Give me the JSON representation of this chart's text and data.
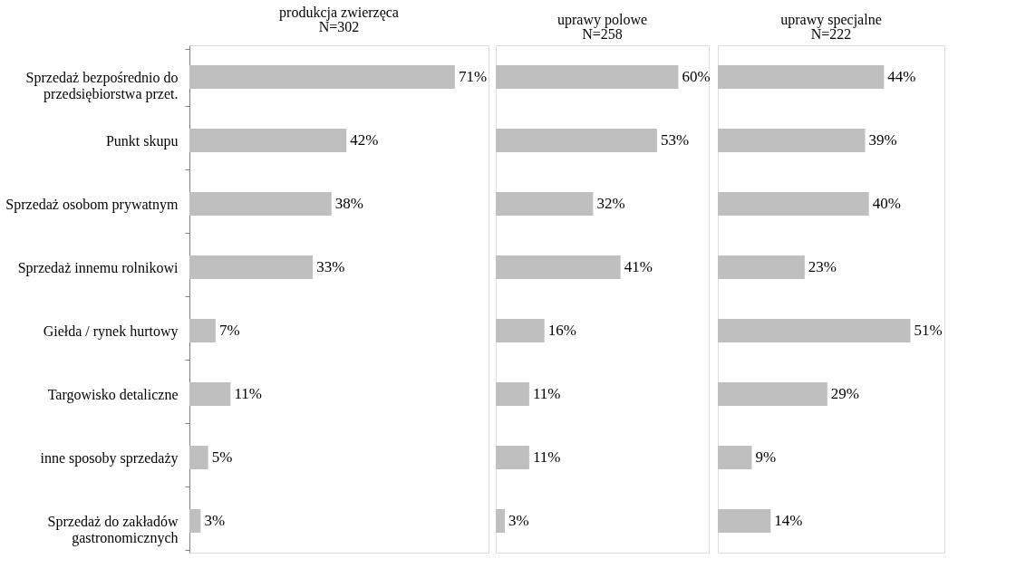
{
  "chart_data": [
    {
      "type": "bar",
      "orientation": "horizontal",
      "title": "produkcja zwierzęca",
      "subtitle": "N=302",
      "categories": [
        "Sprzedaż bezpośrednio do\nprzedsiębiorstwa przet.",
        "Punkt skupu",
        "Sprzedaż osobom prywatnym",
        "Sprzedaż innemu rolnikowi",
        "Giełda / rynek hurtowy",
        "Targowisko detaliczne",
        "inne sposoby sprzedaży",
        "Sprzedaż do zakładów\ngastronomicznych"
      ],
      "values": [
        71,
        42,
        38,
        33,
        7,
        11,
        5,
        3
      ],
      "value_labels": [
        "71%",
        "42%",
        "38%",
        "33%",
        "7%",
        "11%",
        "5%",
        "3%"
      ],
      "color": "#bfbfbf",
      "xlim": [
        0,
        80
      ],
      "tick_labels": "y"
    },
    {
      "type": "bar",
      "orientation": "horizontal",
      "title": "uprawy polowe",
      "subtitle": "N=258",
      "categories": [
        null,
        null,
        null,
        null,
        null,
        null,
        null,
        null
      ],
      "values": [
        60,
        53,
        32,
        41,
        16,
        11,
        11,
        3
      ],
      "value_labels": [
        "60%",
        "53%",
        "32%",
        "41%",
        "16%",
        "11%",
        "11%",
        "3%"
      ],
      "color": "#bfbfbf",
      "xlim": [
        0,
        70
      ],
      "tick_labels": false
    },
    {
      "type": "bar",
      "orientation": "horizontal",
      "title": "uprawy specjalne",
      "subtitle": "N=222",
      "categories": [
        null,
        null,
        null,
        null,
        null,
        null,
        null,
        null
      ],
      "values": [
        44,
        39,
        40,
        23,
        51,
        29,
        9,
        14
      ],
      "value_labels": [
        "44%",
        "39%",
        "40%",
        "23%",
        "51%",
        "29%",
        "9%",
        "14%"
      ],
      "color": "#bfbfbf",
      "xlim": [
        0,
        60
      ],
      "tick_labels": false
    }
  ]
}
